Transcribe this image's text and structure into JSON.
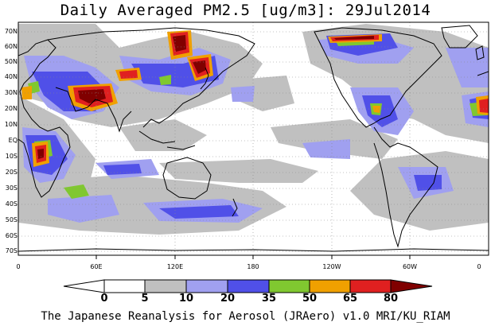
{
  "title": "Daily Averaged PM2.5 [ug/m3]: 29Jul2014",
  "footer": "The Japanese Reanalysis for Aerosol (JRAero) v1.0 MRI/KU_RIAM",
  "lat_labels": [
    "70N",
    "60N",
    "50N",
    "40N",
    "30N",
    "20N",
    "10N",
    "EQ",
    "10S",
    "20S",
    "30S",
    "40S",
    "50S",
    "60S",
    "70S"
  ],
  "lon_labels": [
    "0",
    "60E",
    "120E",
    "180",
    "120W",
    "60W",
    "0"
  ],
  "colorbar": {
    "labels": [
      "0",
      "5",
      "10",
      "20",
      "35",
      "50",
      "65",
      "80"
    ],
    "colors": [
      "#ffffff",
      "#ffffff",
      "#c0c0c0",
      "#a0a0f0",
      "#5050e8",
      "#80c830",
      "#f0a000",
      "#e02020",
      "#800000"
    ]
  },
  "palette": {
    "c5": "#c0c0c0",
    "c10": "#a0a0f0",
    "c20": "#5050e8",
    "c35": "#80c830",
    "c50": "#f0a000",
    "c65": "#e02020",
    "c80": "#800000"
  }
}
